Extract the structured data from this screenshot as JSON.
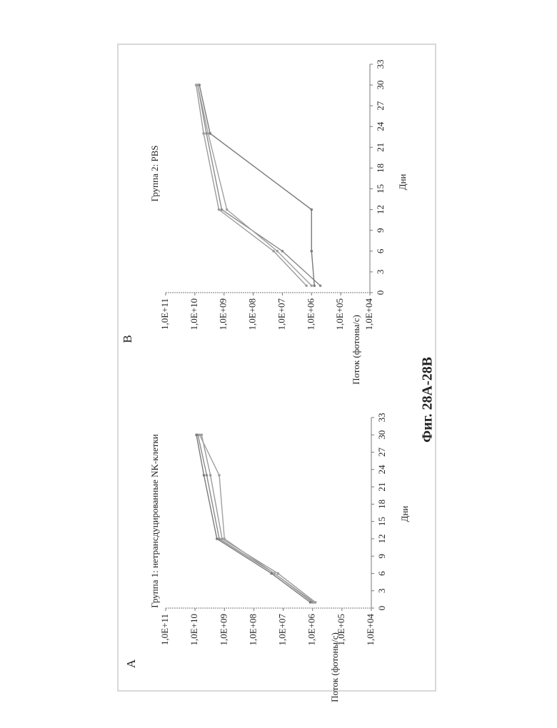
{
  "caption": "Фиг. 28А-28В",
  "chart_data": [
    {
      "type": "line",
      "panel": "A",
      "title": "Группа 1: нетрансдуцированные NK-клетки",
      "xlabel": "Дни",
      "ylabel": "Поток (фотоны/с)",
      "log_y": true,
      "x": [
        1,
        6,
        12,
        23,
        30
      ],
      "series": [
        {
          "color": "#8a8a8a",
          "values": [
            1000000,
            20000000,
            1500000000,
            4000000000,
            8000000000
          ]
        },
        {
          "color": "#9a9a9a",
          "values": [
            800000,
            15000000,
            1200000000,
            3000000000,
            6000000000
          ]
        },
        {
          "color": "#7a7a7a",
          "values": [
            1200000,
            25000000,
            1800000000,
            5000000000,
            9000000000
          ]
        },
        {
          "color": "#a0a0a0",
          "values": [
            900000,
            20000000,
            1000000000,
            1500000000,
            7000000000
          ]
        }
      ],
      "xlim": [
        0,
        33
      ],
      "xticks": [
        0,
        3,
        6,
        9,
        12,
        15,
        18,
        21,
        24,
        27,
        30,
        33
      ],
      "ylim": [
        10000,
        100000000000
      ],
      "yticks": [
        {
          "value": 10000,
          "label": "1,0E+04"
        },
        {
          "value": 100000,
          "label": "1,0E+05"
        },
        {
          "value": 1000000,
          "label": "1,0E+06"
        },
        {
          "value": 10000000,
          "label": "1,0E+07"
        },
        {
          "value": 100000000,
          "label": "1,0E+08"
        },
        {
          "value": 1000000000,
          "label": "1,0E+09"
        },
        {
          "value": 10000000000,
          "label": "1,0E+10"
        },
        {
          "value": 100000000000,
          "label": "1,0E+11"
        }
      ]
    },
    {
      "type": "line",
      "panel": "B",
      "title": "Группа 2: PBS",
      "xlabel": "Дни",
      "ylabel": "Поток (фотоны/с)",
      "log_y": true,
      "x": [
        1,
        6,
        12,
        23,
        30
      ],
      "series": [
        {
          "color": "#8a8a8a",
          "values": [
            500000,
            10000000,
            1200000000,
            4000000000,
            8000000000
          ]
        },
        {
          "color": "#9a9a9a",
          "values": [
            1500000,
            20000000,
            1500000000,
            5000000000,
            9000000000
          ]
        },
        {
          "color": "#7a7a7a",
          "values": [
            800000,
            1000000,
            1000000,
            3000000000,
            7000000000
          ]
        },
        {
          "color": "#a0a0a0",
          "values": [
            1000000,
            15000000,
            800000000,
            3500000000,
            8000000000
          ]
        }
      ],
      "xlim": [
        0,
        33
      ],
      "xticks": [
        0,
        3,
        6,
        9,
        12,
        15,
        18,
        21,
        24,
        27,
        30,
        33
      ],
      "ylim": [
        10000,
        100000000000
      ],
      "yticks": [
        {
          "value": 10000,
          "label": "1,0E+04"
        },
        {
          "value": 100000,
          "label": "1,0E+05"
        },
        {
          "value": 1000000,
          "label": "1,0E+06"
        },
        {
          "value": 10000000,
          "label": "1,0E+07"
        },
        {
          "value": 100000000,
          "label": "1,0E+08"
        },
        {
          "value": 1000000000,
          "label": "1,0E+09"
        },
        {
          "value": 10000000000,
          "label": "1,0E+10"
        },
        {
          "value": 100000000000,
          "label": "1,0E+11"
        }
      ]
    }
  ]
}
